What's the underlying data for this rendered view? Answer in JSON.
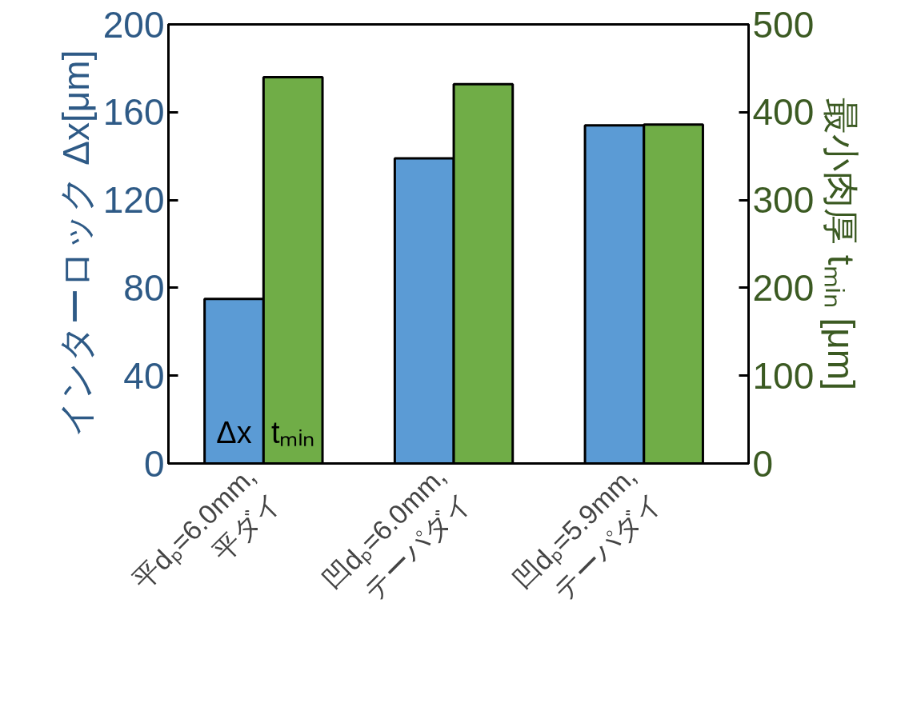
{
  "chart_data": {
    "type": "bar",
    "categories": [
      "平dₚ=6.0mm,\n平ダイ",
      "凹dₚ=6.0mm,\nテーパダイ",
      "凹dₚ=5.9mm,\nテーパダイ"
    ],
    "ylabel": "インターロック Δx[μm]",
    "y2label": "最小肉厚 tₘᵢₙ [μm]",
    "ylim": [
      0,
      200
    ],
    "yticks": [
      0,
      40,
      80,
      120,
      160,
      200
    ],
    "y2lim": [
      0,
      500
    ],
    "y2ticks": [
      0,
      100,
      200,
      300,
      400,
      500
    ],
    "grid": false,
    "series": [
      {
        "name": "Δx",
        "color": "#5b9bd5",
        "values": [
          75,
          139,
          154
        ]
      },
      {
        "name": "tₘᵢₙ",
        "color": "#70ad47",
        "values": [
          440,
          432,
          386
        ],
        "axis": "y2"
      }
    ]
  }
}
